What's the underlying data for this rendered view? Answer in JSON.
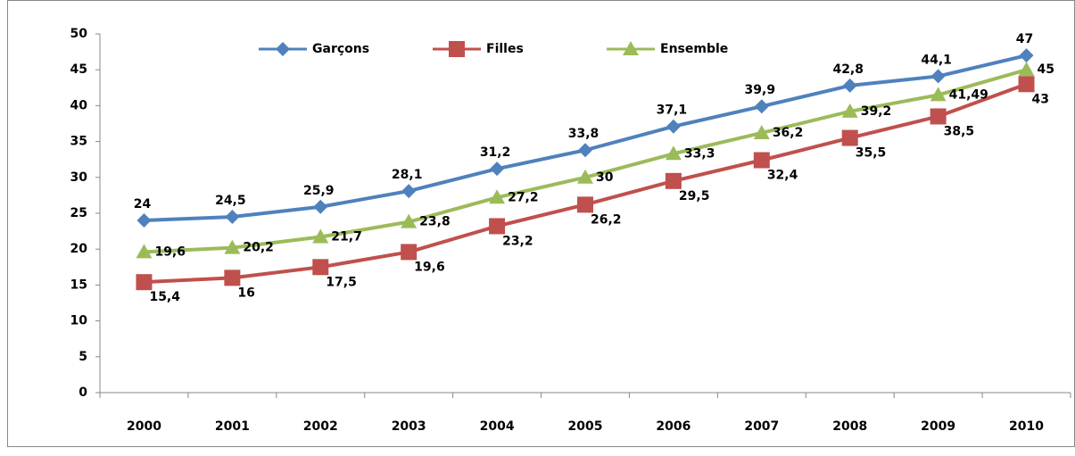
{
  "chart_data": {
    "type": "line",
    "categories": [
      "2000",
      "2001",
      "2002",
      "2003",
      "2004",
      "2005",
      "2006",
      "2007",
      "2008",
      "2009",
      "2010"
    ],
    "series": [
      {
        "name": "Garçons",
        "color": "#4f81bd",
        "marker": "diamond",
        "values": [
          24,
          24.5,
          25.9,
          28.1,
          31.2,
          33.8,
          37.1,
          39.9,
          42.8,
          44.1,
          47
        ],
        "value_labels": [
          "24",
          "24,5",
          "25,9",
          "28,1",
          "31,2",
          "33,8",
          "37,1",
          "39,9",
          "42,8",
          "44,1",
          "47"
        ]
      },
      {
        "name": "Filles",
        "color": "#c0504d",
        "marker": "square",
        "values": [
          15.4,
          16,
          17.5,
          19.6,
          23.2,
          26.2,
          29.5,
          32.4,
          35.5,
          38.5,
          43
        ],
        "value_labels": [
          "15,4",
          "16",
          "17,5",
          "19,6",
          "23,2",
          "26,2",
          "29,5",
          "32,4",
          "35,5",
          "38,5",
          "43"
        ]
      },
      {
        "name": "Ensemble",
        "color": "#9bbb59",
        "marker": "triangle",
        "values": [
          19.6,
          20.2,
          21.7,
          23.8,
          27.2,
          30,
          33.3,
          36.2,
          39.2,
          41.49,
          45
        ],
        "value_labels": [
          "19,6",
          "20,2",
          "21,7",
          "23,8",
          "27,2",
          "30",
          "33,3",
          "36,2",
          "39,2",
          "41,49",
          "45"
        ]
      }
    ],
    "ylim": [
      0,
      50
    ],
    "yticks": [
      0,
      5,
      10,
      15,
      20,
      25,
      30,
      35,
      40,
      45,
      50
    ],
    "grid": false,
    "legend": "top"
  }
}
